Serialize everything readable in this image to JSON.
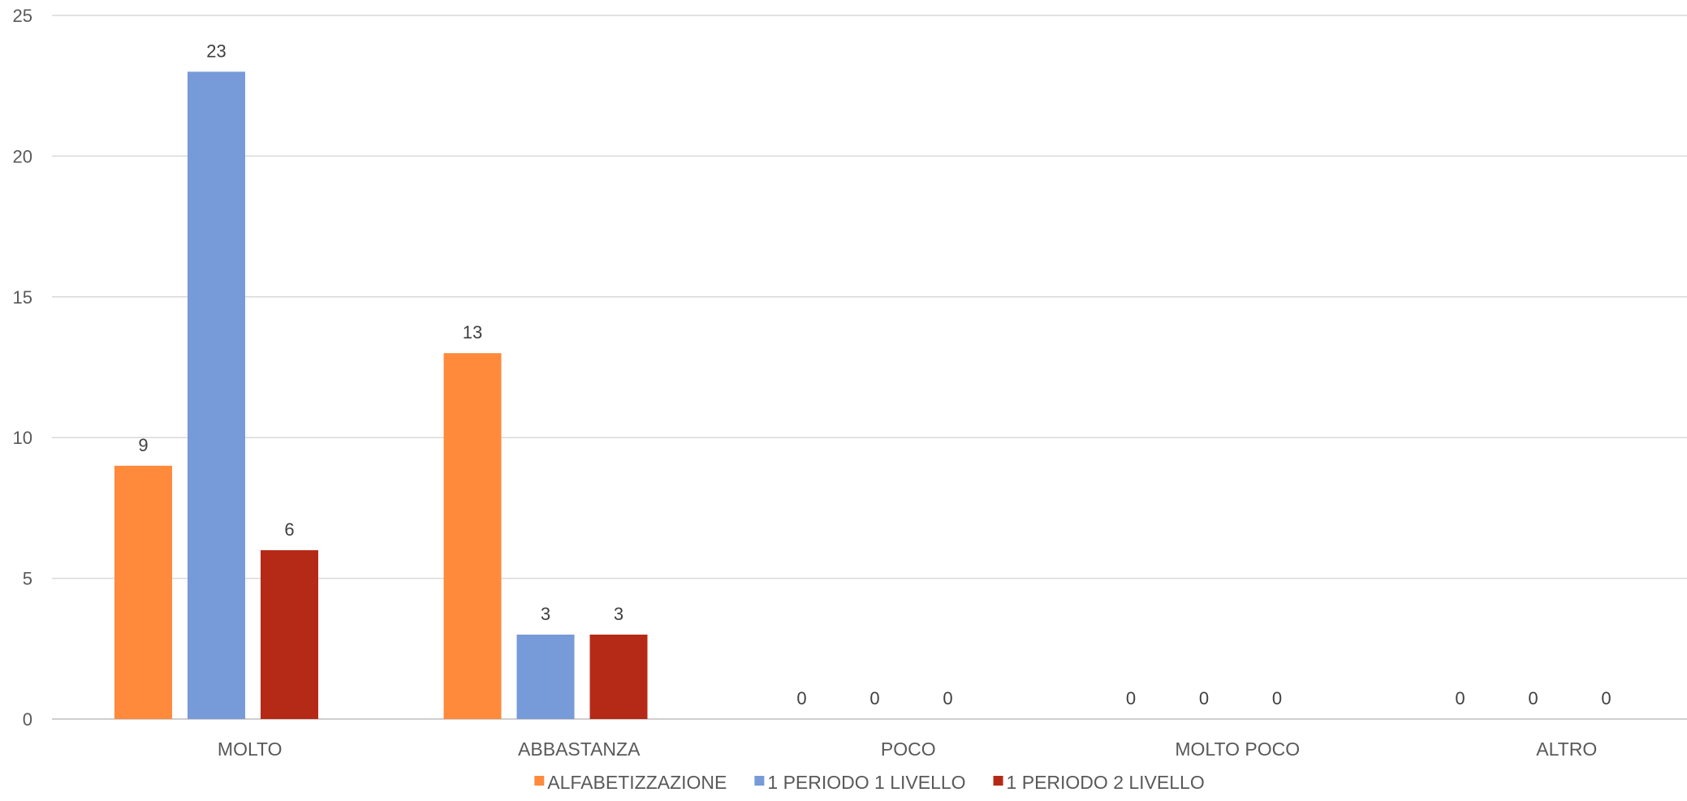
{
  "chart_data": {
    "type": "bar",
    "categories": [
      "MOLTO",
      "ABBASTANZA",
      "POCO",
      "MOLTO POCO",
      "ALTRO"
    ],
    "series": [
      {
        "name": "ALFABETIZZAZIONE",
        "color": "#FF8A3C",
        "values": [
          9,
          13,
          0,
          0,
          0
        ]
      },
      {
        "name": "1 PERIODO 1 LIVELLO",
        "color": "#779AD8",
        "values": [
          23,
          3,
          0,
          0,
          0
        ]
      },
      {
        "name": "1 PERIODO 2 LIVELLO",
        "color": "#B52A17",
        "values": [
          6,
          3,
          0,
          0,
          0
        ]
      }
    ],
    "ylim": [
      0,
      25
    ],
    "yticks": [
      0,
      5,
      10,
      15,
      20,
      25
    ],
    "grid": true,
    "legend": "bottom",
    "data_labels": true
  }
}
